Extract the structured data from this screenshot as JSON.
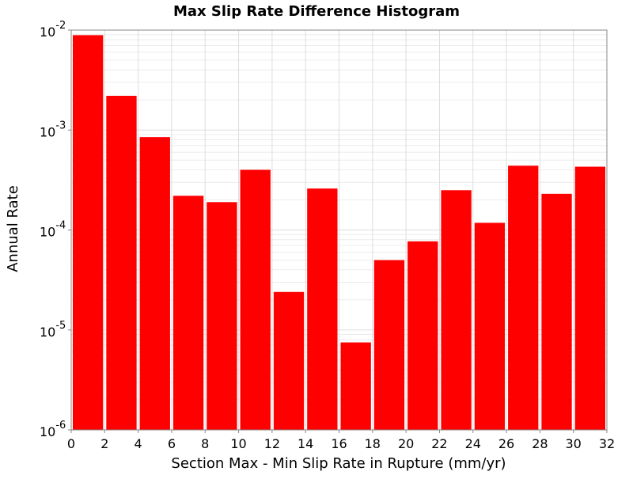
{
  "chart_data": {
    "type": "bar",
    "title": "Max Slip Rate Difference Histogram",
    "xlabel": "Section Max - Min Slip Rate in Rupture (mm/yr)",
    "ylabel": "Annual Rate",
    "xlim": [
      0,
      32
    ],
    "ylim": [
      1e-06,
      0.01
    ],
    "yscale": "log",
    "bin_width": 2,
    "x_ticks": [
      "0",
      "2",
      "4",
      "6",
      "8",
      "10",
      "12",
      "14",
      "16",
      "18",
      "20",
      "22",
      "24",
      "26",
      "28",
      "30",
      "32"
    ],
    "y_ticks": [
      {
        "base": "10",
        "exp": "-6"
      },
      {
        "base": "10",
        "exp": "-5"
      },
      {
        "base": "10",
        "exp": "-4"
      },
      {
        "base": "10",
        "exp": "-3"
      },
      {
        "base": "10",
        "exp": "-2"
      }
    ],
    "bins": [
      {
        "x0": 0,
        "x1": 2,
        "value": 0.0089
      },
      {
        "x0": 2,
        "x1": 4,
        "value": 0.0022
      },
      {
        "x0": 4,
        "x1": 6,
        "value": 0.00085
      },
      {
        "x0": 6,
        "x1": 8,
        "value": 0.00022
      },
      {
        "x0": 8,
        "x1": 10,
        "value": 0.00019
      },
      {
        "x0": 10,
        "x1": 12,
        "value": 0.0004
      },
      {
        "x0": 12,
        "x1": 14,
        "value": 2.4e-05
      },
      {
        "x0": 14,
        "x1": 16,
        "value": 0.00026
      },
      {
        "x0": 16,
        "x1": 18,
        "value": 7.5e-06
      },
      {
        "x0": 18,
        "x1": 20,
        "value": 5e-05
      },
      {
        "x0": 20,
        "x1": 22,
        "value": 7.7e-05
      },
      {
        "x0": 22,
        "x1": 24,
        "value": 0.00025
      },
      {
        "x0": 24,
        "x1": 26,
        "value": 0.000118
      },
      {
        "x0": 26,
        "x1": 28,
        "value": 0.00044
      },
      {
        "x0": 28,
        "x1": 30,
        "value": 0.00023
      },
      {
        "x0": 30,
        "x1": 32,
        "value": 0.00043
      }
    ],
    "bar_color": "#ff0000",
    "grid": true
  }
}
